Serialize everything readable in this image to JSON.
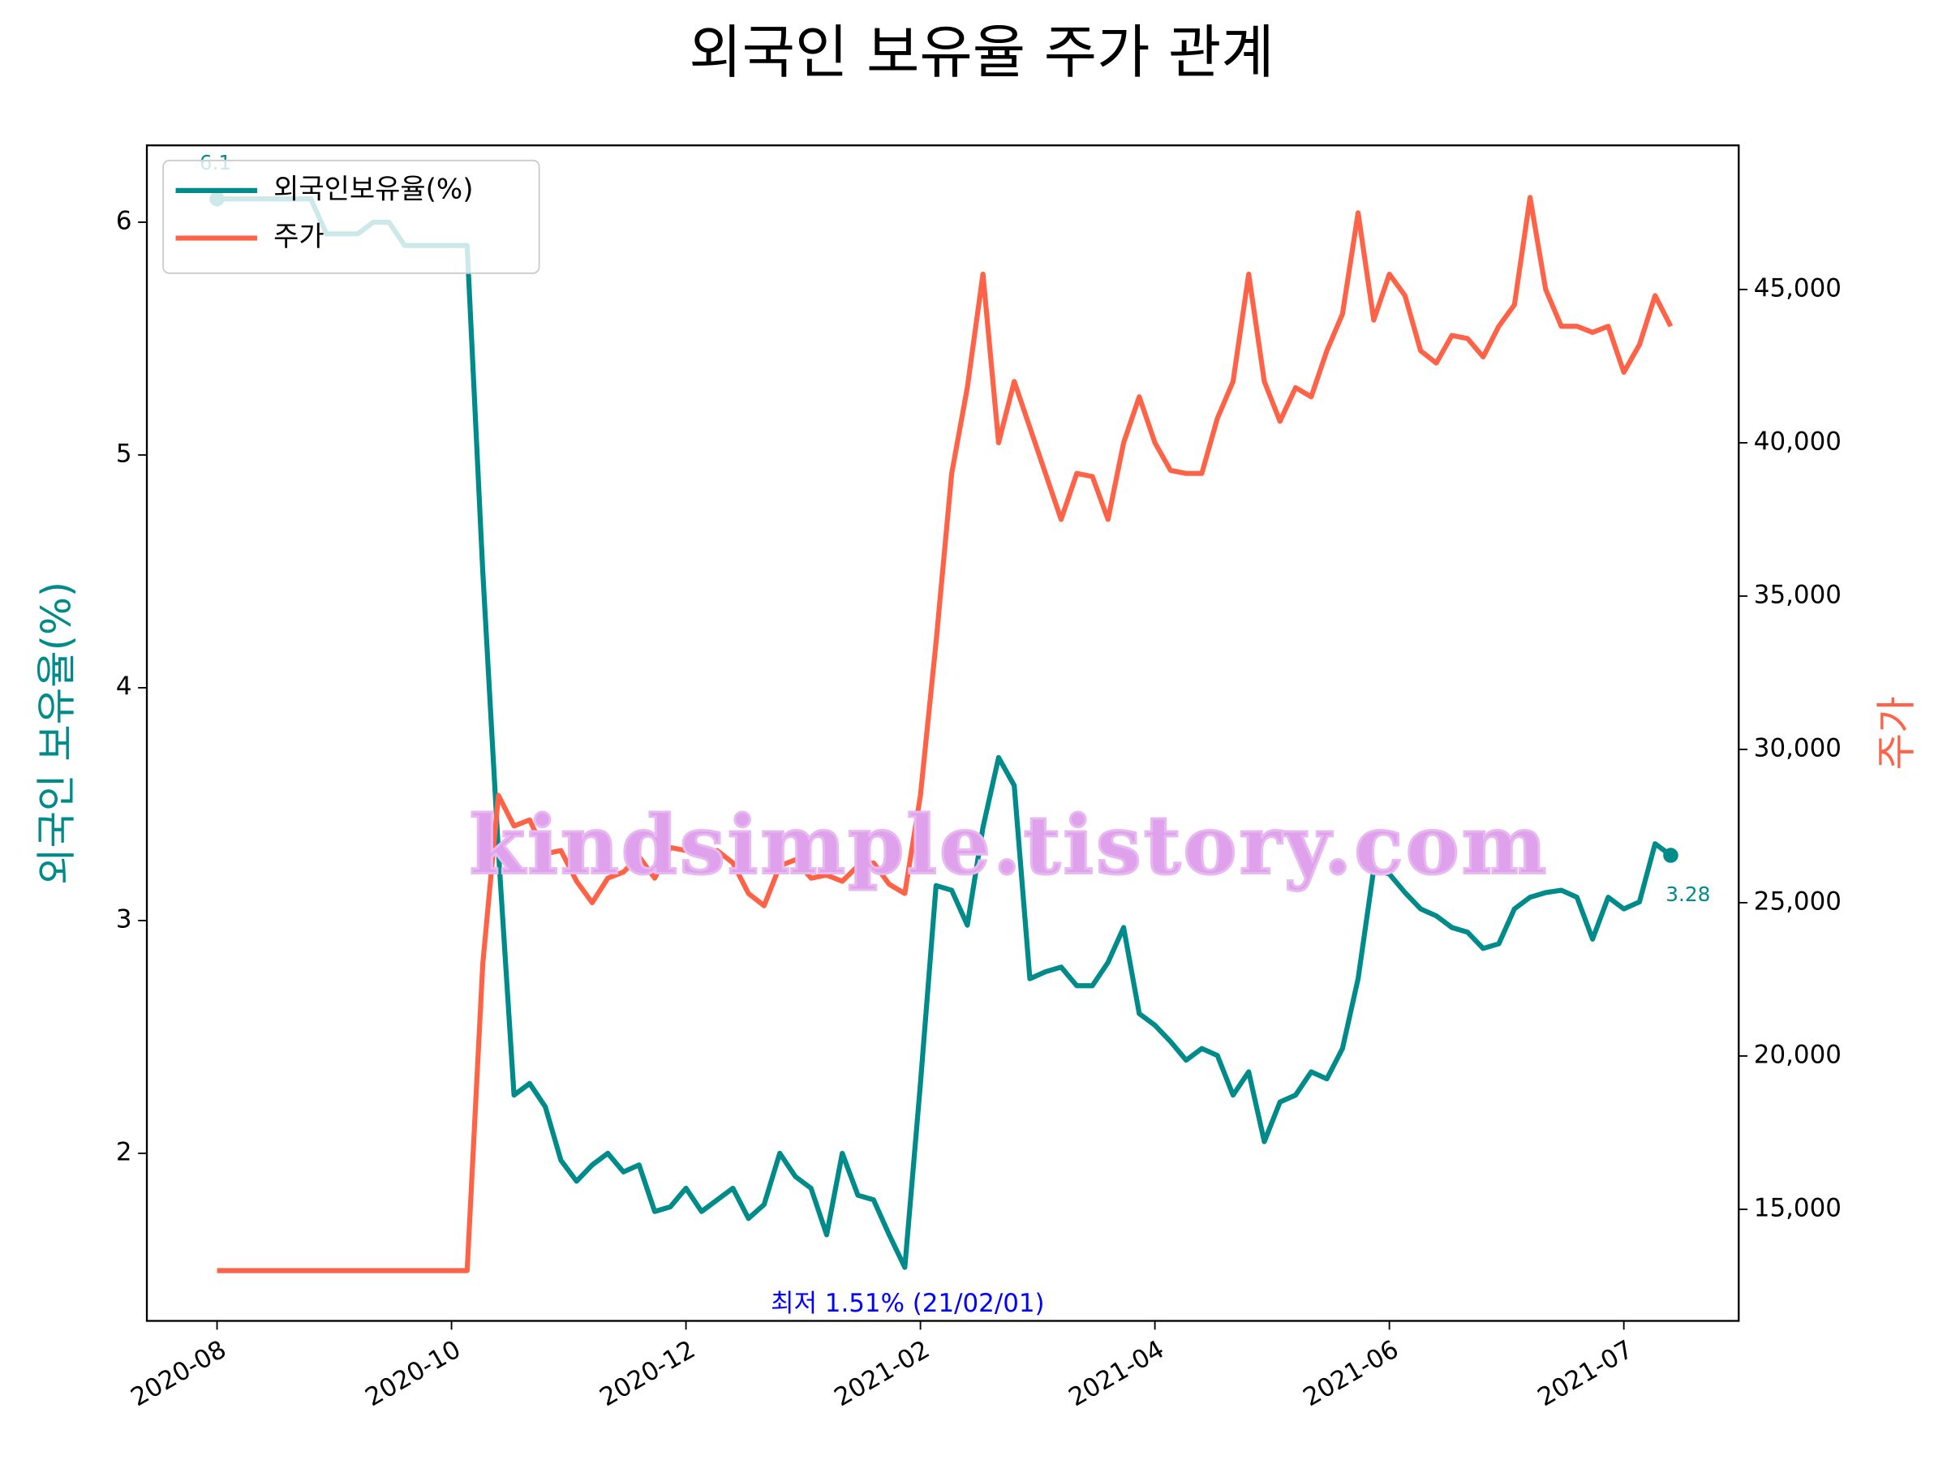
{
  "chart_data": {
    "type": "line",
    "title": "외국인 보유율 주가 관계",
    "ylabel": "외국인 보유율(%)",
    "y2label": "주가",
    "annotation": "최저 1.51% (21/02/01)",
    "watermark": "kindsimple.tistory.com",
    "legend": "upper left",
    "xlim": [
      -4.49,
      97.35
    ],
    "xticks": [
      {
        "value": 0,
        "label": "2020-08"
      },
      {
        "value": 15,
        "label": "2020-10"
      },
      {
        "value": 30,
        "label": "2020-12"
      },
      {
        "value": 45,
        "label": "2021-02"
      },
      {
        "value": 60,
        "label": "2021-04"
      },
      {
        "value": 75,
        "label": "2021-06"
      },
      {
        "value": 90,
        "label": "2021-07"
      }
    ],
    "ylim": [
      1.28,
      6.33
    ],
    "yticks": [
      2,
      3,
      4,
      5,
      6
    ],
    "y2lim": [
      11360,
      49700
    ],
    "y2ticks": [
      {
        "value": 15000,
        "label": "15,000"
      },
      {
        "value": 20000,
        "label": "20,000"
      },
      {
        "value": 25000,
        "label": "25,000"
      },
      {
        "value": 30000,
        "label": "30,000"
      },
      {
        "value": 35000,
        "label": "35,000"
      },
      {
        "value": 40000,
        "label": "40,000"
      },
      {
        "value": 45000,
        "label": "45,000"
      }
    ],
    "series": [
      {
        "name": "외국인보유율(%)",
        "color": "#008b8b",
        "axis": "y",
        "values": [
          6.1,
          6.1,
          6.1,
          6.1,
          6.1,
          6.1,
          6.1,
          5.95,
          5.95,
          5.95,
          6.0,
          6.0,
          5.9,
          5.9,
          5.9,
          5.9,
          5.9,
          4.5,
          3.3,
          2.25,
          2.3,
          2.2,
          1.97,
          1.88,
          1.95,
          2.0,
          1.92,
          1.95,
          1.75,
          1.77,
          1.85,
          1.75,
          1.8,
          1.85,
          1.72,
          1.78,
          2.0,
          1.9,
          1.85,
          1.65,
          2.0,
          1.82,
          1.8,
          1.65,
          1.51,
          2.3,
          3.15,
          3.13,
          2.98,
          3.4,
          3.7,
          3.58,
          2.75,
          2.78,
          2.8,
          2.72,
          2.72,
          2.82,
          2.97,
          2.6,
          2.55,
          2.48,
          2.4,
          2.45,
          2.42,
          2.25,
          2.35,
          2.05,
          2.22,
          2.25,
          2.35,
          2.32,
          2.45,
          2.75,
          3.22,
          3.2,
          3.12,
          3.05,
          3.02,
          2.97,
          2.95,
          2.88,
          2.9,
          3.05,
          3.1,
          3.12,
          3.13,
          3.1,
          2.92,
          3.1,
          3.05,
          3.08,
          3.33,
          3.28
        ]
      },
      {
        "name": "주가",
        "color": "#ff6347",
        "axis": "y2",
        "values": [
          13000,
          13000,
          13000,
          13000,
          13000,
          13000,
          13000,
          13000,
          13000,
          13000,
          13000,
          13000,
          13000,
          13000,
          13000,
          13000,
          13000,
          23000,
          28500,
          27500,
          27700,
          26600,
          26700,
          25700,
          25000,
          25800,
          26000,
          26500,
          25800,
          26800,
          26700,
          26600,
          26700,
          26300,
          25300,
          24900,
          26200,
          26400,
          25800,
          25900,
          25700,
          26200,
          26300,
          25600,
          25300,
          28500,
          33500,
          39000,
          41800,
          45500,
          40000,
          42000,
          40500,
          39000,
          37500,
          39000,
          38900,
          37500,
          40000,
          41500,
          40000,
          39100,
          39000,
          39000,
          40800,
          42000,
          45500,
          42000,
          40700,
          41800,
          41500,
          43000,
          44200,
          47500,
          44000,
          45500,
          44800,
          43000,
          42600,
          43500,
          43400,
          42800,
          43800,
          44500,
          48000,
          45000,
          43800,
          43800,
          43600,
          43800,
          42300,
          43200,
          44800,
          43800
        ]
      }
    ]
  }
}
